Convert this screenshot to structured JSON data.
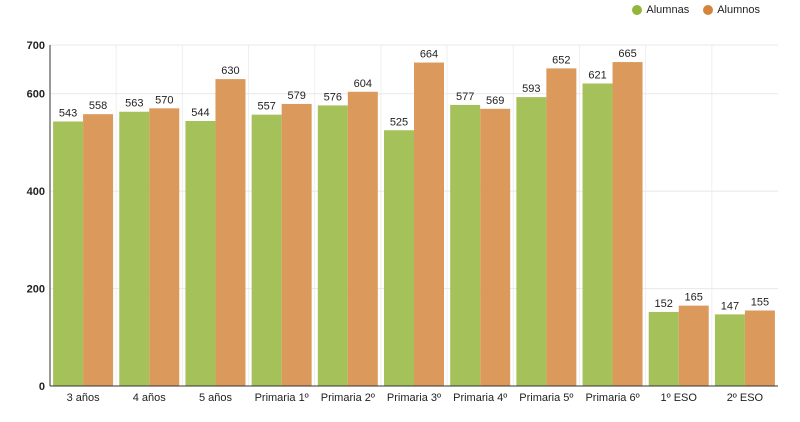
{
  "chart_data": {
    "type": "bar",
    "title": "",
    "xlabel": "",
    "ylabel": "",
    "ylim": [
      0,
      700
    ],
    "yticks": [
      0,
      200,
      400,
      600,
      700
    ],
    "grid": true,
    "legend_position": "top-right",
    "categories": [
      "3 años",
      "4 años",
      "5 años",
      "Primaria 1º",
      "Primaria 2º",
      "Primaria 3º",
      "Primaria 4º",
      "Primaria 5º",
      "Primaria 6º",
      "1º ESO",
      "2º ESO"
    ],
    "series": [
      {
        "name": "Alumnas",
        "color": "#a5c15a",
        "values": [
          543,
          563,
          544,
          557,
          576,
          525,
          577,
          593,
          621,
          152,
          147
        ]
      },
      {
        "name": "Alumnos",
        "color": "#dc995c",
        "values": [
          558,
          570,
          630,
          579,
          604,
          664,
          569,
          652,
          665,
          165,
          155
        ]
      }
    ]
  }
}
